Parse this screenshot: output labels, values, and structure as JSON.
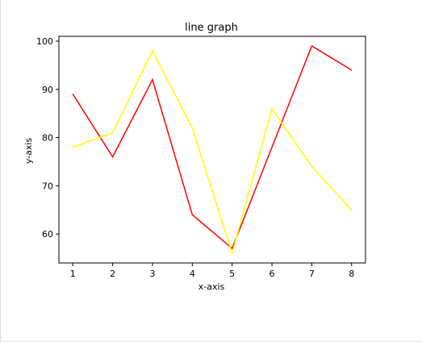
{
  "chart_data": {
    "type": "line",
    "title": "line graph",
    "xlabel": "x-axis",
    "ylabel": "y-axis",
    "x": [
      1,
      2,
      3,
      4,
      5,
      6,
      7,
      8
    ],
    "xlim": [
      0.65,
      8.35
    ],
    "ylim": [
      54,
      101
    ],
    "xticks": [
      1,
      2,
      3,
      4,
      5,
      6,
      7,
      8
    ],
    "yticks": [
      60,
      70,
      80,
      90,
      100
    ],
    "grid": false,
    "series": [
      {
        "color": "#ff0000",
        "values": [
          89,
          76,
          92,
          64,
          57,
          78,
          99,
          94
        ]
      },
      {
        "color": "#ffff00",
        "values": [
          78,
          81,
          98,
          82,
          56,
          86,
          74,
          65
        ]
      }
    ]
  }
}
